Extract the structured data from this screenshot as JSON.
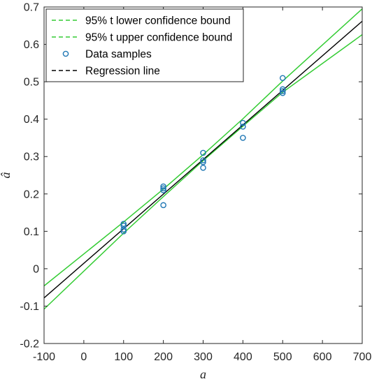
{
  "chart_data": {
    "type": "scatter",
    "title": "",
    "xlabel": "a",
    "ylabel": "â",
    "xlim": [
      -100,
      700
    ],
    "ylim": [
      -0.2,
      0.7
    ],
    "x_ticks": [
      -100,
      0,
      100,
      200,
      300,
      400,
      500,
      600,
      700
    ],
    "y_ticks": [
      -0.2,
      -0.1,
      0,
      0.1,
      0.2,
      0.3,
      0.4,
      0.5,
      0.6,
      0.7
    ],
    "x_tick_labels": [
      "-100",
      "0",
      "100",
      "200",
      "300",
      "400",
      "500",
      "600",
      "700"
    ],
    "y_tick_labels": [
      "-0.2",
      "-0.1",
      "0",
      "0.1",
      "0.2",
      "0.3",
      "0.4",
      "0.5",
      "0.6",
      "0.7"
    ],
    "grid": false,
    "legend_position": "top-left",
    "series": [
      {
        "name": "95% t lower confidence bound",
        "kind": "line",
        "style": "solid",
        "color": "#33cc33",
        "x": [
          -100,
          100,
          200,
          300,
          400,
          500,
          700
        ],
        "y": [
          -0.108,
          0.095,
          0.193,
          0.289,
          0.381,
          0.472,
          0.626
        ]
      },
      {
        "name": "95% t upper confidence bound",
        "kind": "line",
        "style": "solid",
        "color": "#33cc33",
        "x": [
          -100,
          100,
          200,
          300,
          400,
          500,
          700
        ],
        "y": [
          -0.046,
          0.125,
          0.213,
          0.305,
          0.401,
          0.502,
          0.695
        ]
      },
      {
        "name": "Data samples",
        "kind": "scatter",
        "color": "#1f77b4",
        "x": [
          100,
          100,
          100,
          100,
          200,
          200,
          200,
          200,
          300,
          300,
          300,
          300,
          400,
          400,
          400,
          500,
          500,
          500,
          500
        ],
        "y": [
          0.12,
          0.115,
          0.105,
          0.1,
          0.22,
          0.21,
          0.215,
          0.17,
          0.31,
          0.29,
          0.285,
          0.27,
          0.39,
          0.38,
          0.35,
          0.51,
          0.48,
          0.475,
          0.47
        ]
      },
      {
        "name": "Regression line",
        "kind": "line",
        "style": "solid",
        "color": "#000000",
        "x": [
          -100,
          700
        ],
        "y": [
          -0.078,
          0.662
        ]
      }
    ],
    "legend": [
      {
        "label": "95% t lower confidence bound",
        "color": "#33cc33",
        "marker": "dash"
      },
      {
        "label": "95% t upper confidence bound",
        "color": "#33cc33",
        "marker": "dash"
      },
      {
        "label": "Data samples",
        "color": "#1f77b4",
        "marker": "circle"
      },
      {
        "label": "Regression line",
        "color": "#000000",
        "marker": "dash"
      }
    ]
  }
}
